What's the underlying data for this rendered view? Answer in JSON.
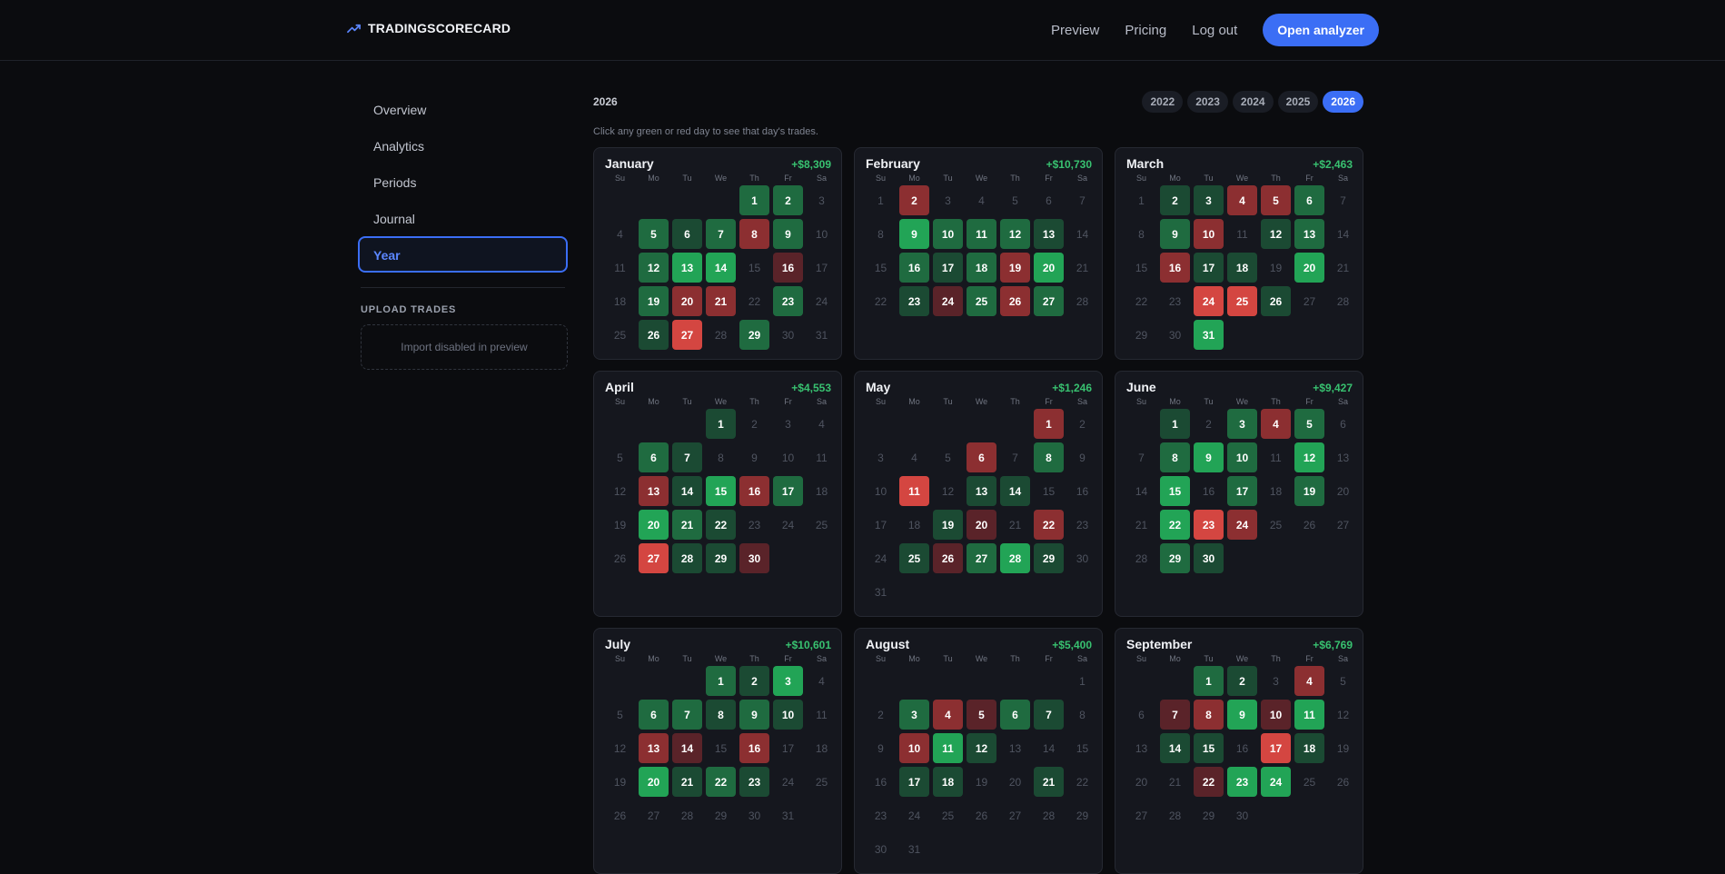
{
  "header": {
    "logo_text": "TRADINGSCORECARD",
    "nav": {
      "preview": "Preview",
      "pricing": "Pricing",
      "logout": "Log out"
    },
    "cta": "Open analyzer"
  },
  "sidebar": {
    "items": [
      {
        "label": "Overview",
        "name": "sidebar-item-overview"
      },
      {
        "label": "Analytics",
        "name": "sidebar-item-analytics"
      },
      {
        "label": "Periods",
        "name": "sidebar-item-periods"
      },
      {
        "label": "Journal",
        "name": "sidebar-item-journal"
      },
      {
        "label": "Year",
        "name": "sidebar-item-year",
        "active": true
      }
    ],
    "upload_title": "UPLOAD TRADES",
    "upload_text": "Import disabled in preview"
  },
  "main": {
    "year_title": "2026",
    "years": [
      "2022",
      "2023",
      "2024",
      "2025",
      "2026"
    ],
    "selected_year": "2026",
    "hint": "Click any green or red day to see that day's trades.",
    "weekdays": [
      "Su",
      "Mo",
      "Tu",
      "We",
      "Th",
      "Fr",
      "Sa"
    ],
    "colors": {
      "green_light": "#22a456",
      "green_mid": "#1f6b40",
      "green_dark": "#1b4a33",
      "red_light": "#d44641",
      "red_mid": "#8c2f31",
      "red_dark": "#5a2329",
      "accent": "#3b6ef5",
      "positive_text": "#38c170"
    },
    "months": [
      {
        "name": "January",
        "total": "+$8,309",
        "offset": 4,
        "days": 31,
        "trades": {
          "1": "g2",
          "2": "g2",
          "5": "g2",
          "6": "g1",
          "7": "g2",
          "8": "r2",
          "9": "g2",
          "12": "g2",
          "13": "g3",
          "14": "g3",
          "16": "r1",
          "19": "g2",
          "20": "r2",
          "21": "r2",
          "23": "g2",
          "26": "g1",
          "27": "r3",
          "29": "g2"
        }
      },
      {
        "name": "February",
        "total": "+$10,730",
        "offset": 0,
        "days": 28,
        "trades": {
          "2": "r2",
          "9": "g3",
          "10": "g2",
          "11": "g2",
          "12": "g2",
          "13": "g1",
          "16": "g2",
          "17": "g1",
          "18": "g2",
          "19": "r2",
          "20": "g3",
          "23": "g1",
          "24": "r1",
          "25": "g2",
          "26": "r2",
          "27": "g2"
        }
      },
      {
        "name": "March",
        "total": "+$2,463",
        "offset": 0,
        "days": 31,
        "trades": {
          "2": "g1",
          "3": "g1",
          "4": "r2",
          "5": "r2",
          "6": "g2",
          "9": "g2",
          "10": "r2",
          "12": "g1",
          "13": "g2",
          "16": "r2",
          "17": "g1",
          "18": "g1",
          "20": "g3",
          "24": "r3",
          "25": "r3",
          "26": "g1",
          "31": "g3"
        }
      },
      {
        "name": "April",
        "total": "+$4,553",
        "offset": 3,
        "days": 30,
        "trades": {
          "1": "g1",
          "6": "g2",
          "7": "g1",
          "13": "r2",
          "14": "g1",
          "15": "g3",
          "16": "r2",
          "17": "g2",
          "20": "g3",
          "21": "g2",
          "22": "g1",
          "27": "r3",
          "28": "g1",
          "29": "g1",
          "30": "r1"
        }
      },
      {
        "name": "May",
        "total": "+$1,246",
        "offset": 5,
        "days": 31,
        "trades": {
          "1": "r2",
          "6": "r2",
          "8": "g2",
          "11": "r3",
          "13": "g1",
          "14": "g1",
          "19": "g1",
          "20": "r1",
          "22": "r2",
          "25": "g1",
          "26": "r1",
          "27": "g2",
          "28": "g3",
          "29": "g1"
        }
      },
      {
        "name": "June",
        "total": "+$9,427",
        "offset": 1,
        "days": 30,
        "trades": {
          "1": "g1",
          "3": "g2",
          "4": "r2",
          "5": "g2",
          "8": "g2",
          "9": "g3",
          "10": "g2",
          "12": "g3",
          "15": "g3",
          "17": "g2",
          "19": "g2",
          "22": "g3",
          "23": "r3",
          "24": "r2",
          "29": "g2",
          "30": "g1"
        }
      },
      {
        "name": "July",
        "total": "+$10,601",
        "offset": 3,
        "days": 31,
        "trades": {
          "1": "g2",
          "2": "g1",
          "3": "g3",
          "6": "g2",
          "7": "g2",
          "8": "g1",
          "9": "g2",
          "10": "g1",
          "13": "r2",
          "14": "r1",
          "16": "r2",
          "20": "g3",
          "21": "g1",
          "22": "g2",
          "23": "g1"
        }
      },
      {
        "name": "August",
        "total": "+$5,400",
        "offset": 6,
        "days": 31,
        "trades": {
          "3": "g2",
          "4": "r2",
          "5": "r1",
          "6": "g2",
          "7": "g1",
          "10": "r2",
          "11": "g3",
          "12": "g1",
          "17": "g1",
          "18": "g1",
          "21": "g1"
        }
      },
      {
        "name": "September",
        "total": "+$6,769",
        "offset": 2,
        "days": 30,
        "trades": {
          "1": "g2",
          "2": "g1",
          "4": "r2",
          "7": "r1",
          "8": "r2",
          "9": "g3",
          "10": "r1",
          "11": "g3",
          "14": "g1",
          "15": "g1",
          "17": "r3",
          "18": "g1",
          "22": "r1",
          "23": "g3",
          "24": "g3"
        }
      }
    ]
  }
}
